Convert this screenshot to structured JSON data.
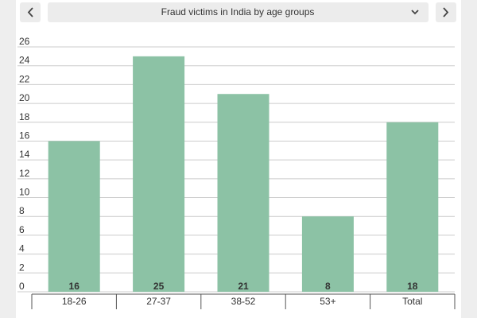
{
  "chart_data": {
    "type": "bar",
    "title": "Fraud victims in India by age groups",
    "categories": [
      "18-26",
      "27-37",
      "38-52",
      "53+",
      "Total"
    ],
    "values": [
      16,
      25,
      21,
      8,
      18
    ],
    "color": "#8cc2a5",
    "ylim": [
      0,
      26
    ],
    "yticks": [
      0,
      2,
      4,
      6,
      8,
      10,
      12,
      14,
      16,
      18,
      20,
      22,
      24,
      26
    ],
    "grid": true
  }
}
